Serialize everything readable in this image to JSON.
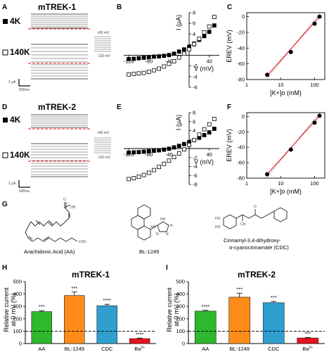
{
  "panels": {
    "A": "A",
    "B": "B",
    "C": "C",
    "D": "D",
    "E": "E",
    "F": "F",
    "G": "G",
    "H": "H",
    "I": "I"
  },
  "traces": {
    "A": {
      "title": "mTREK-1",
      "cond_top": "4K",
      "cond_bottom": "140K",
      "protocol_high": "+80 mV",
      "protocol_low": "-120 mV",
      "scale_y": "2 µA",
      "scale_x": "500ms"
    },
    "D": {
      "title": "mTREK-2",
      "cond_top": "4K",
      "cond_bottom": "140K",
      "protocol_high": "+80 mV",
      "protocol_low": "-120 mV",
      "scale_y": "2 µA",
      "scale_x": "500ms"
    }
  },
  "iv_axis": {
    "xlabel": "V (mV)",
    "ylabel": "I (µA)"
  },
  "erev_axis": {
    "xlabel": "[K+]o (mM)",
    "ylabel": "EREV (mV)"
  },
  "structures": {
    "aa": "Arachidonic Acid (AA)",
    "bl": "BL-1249",
    "cdc_line1": "Cinnamyl-3,4-dihydroxy-",
    "cdc_line2": "α-cyanocinnamate (CDC)",
    "oh": "OH",
    "ho": "HO",
    "ho2": "HO",
    "cn": "CN",
    "o": "O",
    "nh": "NH",
    "n1": "N",
    "n2": "N",
    "n3": "N",
    "nh2": "NH",
    "ch3": "CH3"
  },
  "bar_axis": {
    "ylabel_line1": "Relative current",
    "ylabel_line2": "at 0 mV (%)"
  },
  "chart_data": [
    {
      "panel": "B",
      "type": "scatter",
      "title": "",
      "xlabel": "V (mV)",
      "ylabel": "I (µA)",
      "xlim": [
        -130,
        60
      ],
      "ylim": [
        -6,
        8
      ],
      "xticks": [
        -120,
        -80,
        -40,
        40
      ],
      "yticks": [
        -6,
        -4,
        -2,
        2,
        4,
        6,
        8
      ],
      "series": [
        {
          "marker": "filled",
          "x": [
            -120,
            -110,
            -100,
            -90,
            -80,
            -70,
            -60,
            -50,
            -40,
            -30,
            -20,
            -10,
            0,
            10,
            20,
            30,
            40,
            50
          ],
          "y": [
            -0.7,
            -0.65,
            -0.55,
            -0.45,
            -0.35,
            -0.25,
            -0.2,
            -0.1,
            0.05,
            0.3,
            0.7,
            1.1,
            1.6,
            2.2,
            2.9,
            3.6,
            4.4,
            5.6
          ]
        },
        {
          "marker": "open",
          "x": [
            -120,
            -110,
            -100,
            -90,
            -80,
            -70,
            -60,
            -50,
            -40,
            -30,
            -20,
            -10,
            0,
            10,
            20,
            30,
            40,
            50
          ],
          "y": [
            -3.6,
            -3.5,
            -3.4,
            -3.3,
            -3.1,
            -2.8,
            -2.5,
            -2.1,
            -1.6,
            -1.1,
            -0.4,
            0.3,
            1.1,
            2.1,
            3.1,
            4.3,
            5.4,
            7.2
          ]
        }
      ]
    },
    {
      "panel": "C",
      "type": "scatter",
      "title": "",
      "xlabel": "[K+]o (mM)",
      "ylabel": "EREV (mV)",
      "xscale": "log",
      "xlim": [
        1,
        200
      ],
      "ylim": [
        -80,
        5
      ],
      "xticks": [
        1,
        10,
        100
      ],
      "yticks": [
        0,
        -20,
        -40,
        -60,
        -80
      ],
      "series": [
        {
          "marker": "filled",
          "x": [
            4,
            20,
            100,
            140
          ],
          "y": [
            -74,
            -45,
            -9,
            0
          ]
        }
      ],
      "fit_line": {
        "x": [
          4,
          140
        ],
        "y": [
          -75,
          0
        ]
      }
    },
    {
      "panel": "E",
      "type": "scatter",
      "title": "",
      "xlabel": "V (mV)",
      "ylabel": "I (µA)",
      "xlim": [
        -130,
        60
      ],
      "ylim": [
        -8,
        8
      ],
      "xticks": [
        -120,
        -80,
        -40,
        40
      ],
      "yticks": [
        -8,
        -6,
        -4,
        -2,
        2,
        4,
        6,
        8
      ],
      "series": [
        {
          "marker": "filled",
          "x": [
            -120,
            -110,
            -100,
            -90,
            -80,
            -70,
            -60,
            -50,
            -40,
            -30,
            -20,
            -10,
            0,
            10,
            20,
            30,
            40,
            50
          ],
          "y": [
            -0.9,
            -0.85,
            -0.8,
            -0.7,
            -0.6,
            -0.5,
            -0.4,
            -0.25,
            -0.05,
            0.25,
            0.6,
            1.0,
            1.4,
            1.9,
            2.4,
            3.0,
            3.6,
            4.4
          ]
        },
        {
          "marker": "open",
          "x": [
            -120,
            -110,
            -100,
            -90,
            -80,
            -70,
            -60,
            -50,
            -40,
            -30,
            -20,
            -10,
            0,
            10,
            20,
            30,
            40,
            50
          ],
          "y": [
            -6.8,
            -6.6,
            -6.3,
            -5.9,
            -5.4,
            -4.8,
            -4.1,
            -3.4,
            -2.7,
            -1.9,
            -1.1,
            -0.2,
            0.8,
            1.9,
            3.1,
            4.3,
            5.4,
            6.6
          ]
        }
      ]
    },
    {
      "panel": "F",
      "type": "scatter",
      "title": "",
      "xlabel": "[K+]o (mM)",
      "ylabel": "EREV (mV)",
      "xscale": "log",
      "xlim": [
        1,
        200
      ],
      "ylim": [
        -80,
        5
      ],
      "xticks": [
        1,
        10,
        100
      ],
      "yticks": [
        0,
        -20,
        -40,
        -60,
        -80
      ],
      "series": [
        {
          "marker": "filled",
          "x": [
            4,
            20,
            100,
            140
          ],
          "y": [
            -75,
            -43,
            -8,
            1
          ]
        }
      ],
      "fit_line": {
        "x": [
          4,
          140
        ],
        "y": [
          -75,
          1
        ]
      }
    },
    {
      "panel": "H",
      "type": "bar",
      "title": "mTREK-1",
      "categories": [
        "AA",
        "BL-1249",
        "CDC",
        "Ba2+"
      ],
      "values": [
        258,
        388,
        305,
        40
      ],
      "errors": [
        8,
        28,
        12,
        4
      ],
      "significance": [
        "***",
        "***",
        "****",
        "****"
      ],
      "colors": [
        "#2db82d",
        "#ff8c1a",
        "#2f9fd0",
        "#e8121b"
      ],
      "reference_line": 100,
      "ylabel": "Relative current at 0 mV (%)",
      "ylim": [
        0,
        500
      ],
      "yticks": [
        0,
        100,
        200,
        300,
        400,
        500
      ]
    },
    {
      "panel": "I",
      "type": "bar",
      "title": "mTREK-2",
      "categories": [
        "AA",
        "BL-1249",
        "CDC",
        "Ba2+"
      ],
      "values": [
        262,
        375,
        330,
        45
      ],
      "errors": [
        6,
        32,
        10,
        4
      ],
      "significance": [
        "****",
        "***",
        "***",
        "***"
      ],
      "colors": [
        "#2db82d",
        "#ff8c1a",
        "#2f9fd0",
        "#e8121b"
      ],
      "reference_line": 100,
      "ylabel": "Relative current at 0 mV (%)",
      "ylim": [
        0,
        500
      ],
      "yticks": [
        0,
        100,
        200,
        300,
        400,
        500
      ]
    }
  ]
}
